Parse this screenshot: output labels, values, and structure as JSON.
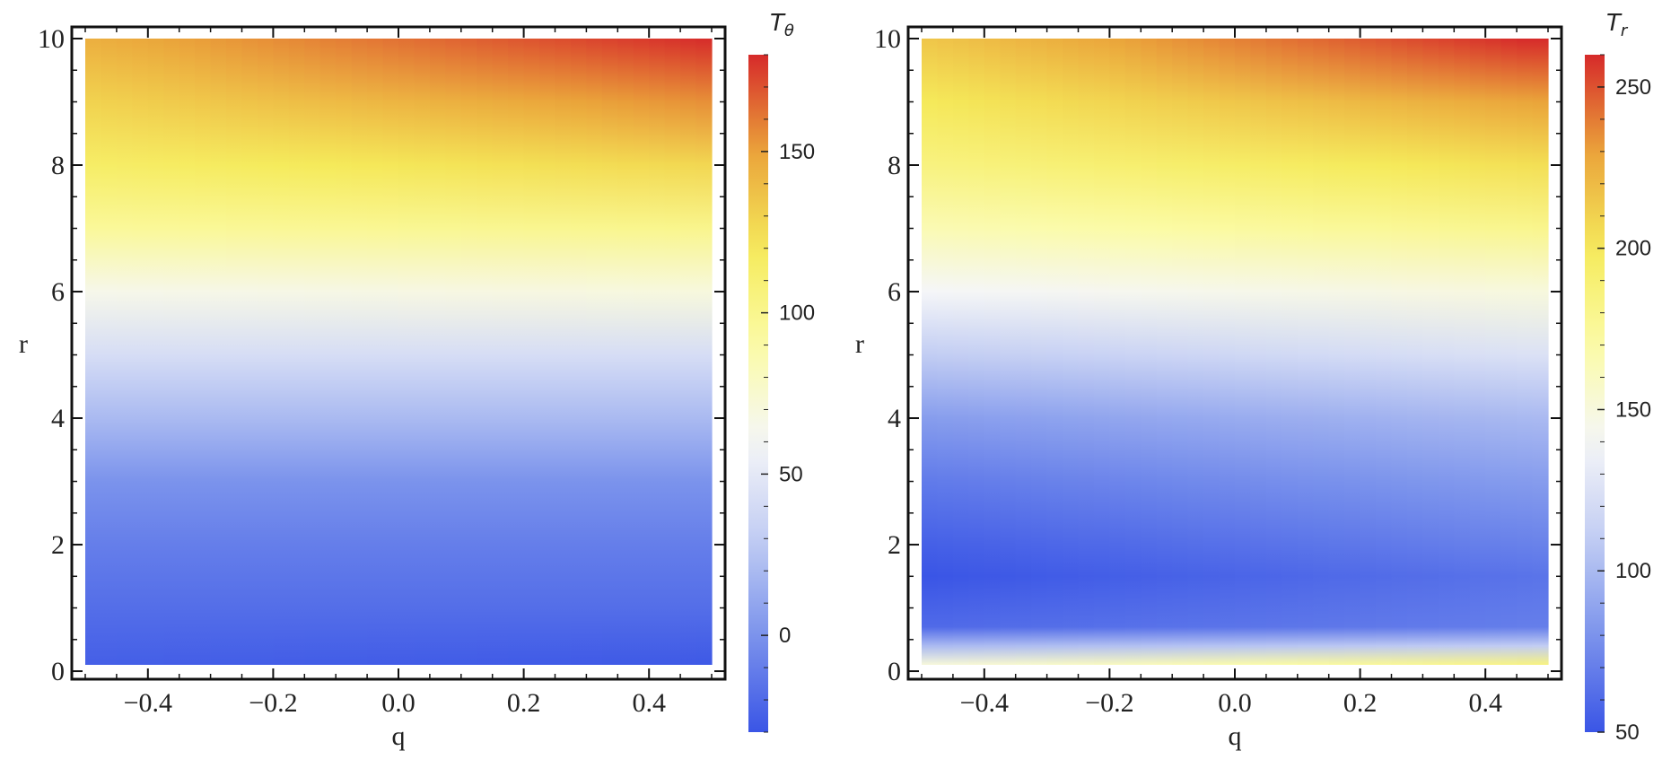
{
  "chart_data": [
    {
      "type": "heatmap",
      "xlabel": "q",
      "ylabel": "r",
      "xlim": [
        -0.5,
        0.5
      ],
      "ylim": [
        0,
        10
      ],
      "x_ticks": [
        "-0.4",
        "-0.2",
        "0.0",
        "0.2",
        "0.4"
      ],
      "x_tick_values": [
        -0.4,
        -0.2,
        0.0,
        0.2,
        0.4
      ],
      "y_ticks": [
        "0",
        "2",
        "4",
        "6",
        "8",
        "10"
      ],
      "y_tick_values": [
        0,
        2,
        4,
        6,
        8,
        10
      ],
      "colorbar": {
        "title_main": "T",
        "title_sub": "θ",
        "range": [
          -30,
          180
        ],
        "ticks": [
          "0",
          "50",
          "100",
          "150"
        ],
        "tick_values": [
          0,
          50,
          100,
          150
        ]
      },
      "value_profile_r": [
        0.1,
        1,
        2,
        3,
        4,
        5,
        6,
        7,
        8,
        9,
        10
      ],
      "value_profile_left": [
        -25,
        -18,
        -10,
        0,
        20,
        42,
        65,
        95,
        115,
        130,
        145
      ],
      "value_profile_right": [
        -28,
        -18,
        -10,
        0,
        20,
        42,
        70,
        100,
        128,
        155,
        180
      ],
      "colormap": [
        "#3a55e6",
        "#7b93ec",
        "#c2cdf3",
        "#f5f6f8",
        "#fbfba6",
        "#f5ea5a",
        "#eaa33a",
        "#d62a2a"
      ]
    },
    {
      "type": "heatmap",
      "xlabel": "q",
      "ylabel": "r",
      "xlim": [
        -0.5,
        0.5
      ],
      "ylim": [
        0,
        10
      ],
      "x_ticks": [
        "-0.4",
        "-0.2",
        "0.0",
        "0.2",
        "0.4"
      ],
      "x_tick_values": [
        -0.4,
        -0.2,
        0.0,
        0.2,
        0.4
      ],
      "y_ticks": [
        "0",
        "2",
        "4",
        "6",
        "8",
        "10"
      ],
      "y_tick_values": [
        0,
        2,
        4,
        6,
        8,
        10
      ],
      "colorbar": {
        "title_main": "T",
        "title_sub": "r",
        "range": [
          50,
          260
        ],
        "ticks": [
          "50",
          "100",
          "150",
          "200",
          "250"
        ],
        "tick_values": [
          50,
          100,
          150,
          200,
          250
        ]
      },
      "value_profile_r": [
        0.1,
        0.4,
        0.7,
        1.5,
        2,
        3,
        4,
        5,
        6,
        7,
        8,
        9,
        10
      ],
      "value_profile_left": [
        150,
        100,
        60,
        50,
        55,
        68,
        85,
        110,
        140,
        165,
        185,
        200,
        215
      ],
      "value_profile_right": [
        185,
        110,
        70,
        65,
        72,
        85,
        100,
        125,
        150,
        180,
        205,
        230,
        262
      ],
      "colormap": [
        "#3a55e6",
        "#7b93ec",
        "#c2cdf3",
        "#f5f6f8",
        "#fbfba6",
        "#f5ea5a",
        "#eaa33a",
        "#d62a2a"
      ]
    }
  ]
}
